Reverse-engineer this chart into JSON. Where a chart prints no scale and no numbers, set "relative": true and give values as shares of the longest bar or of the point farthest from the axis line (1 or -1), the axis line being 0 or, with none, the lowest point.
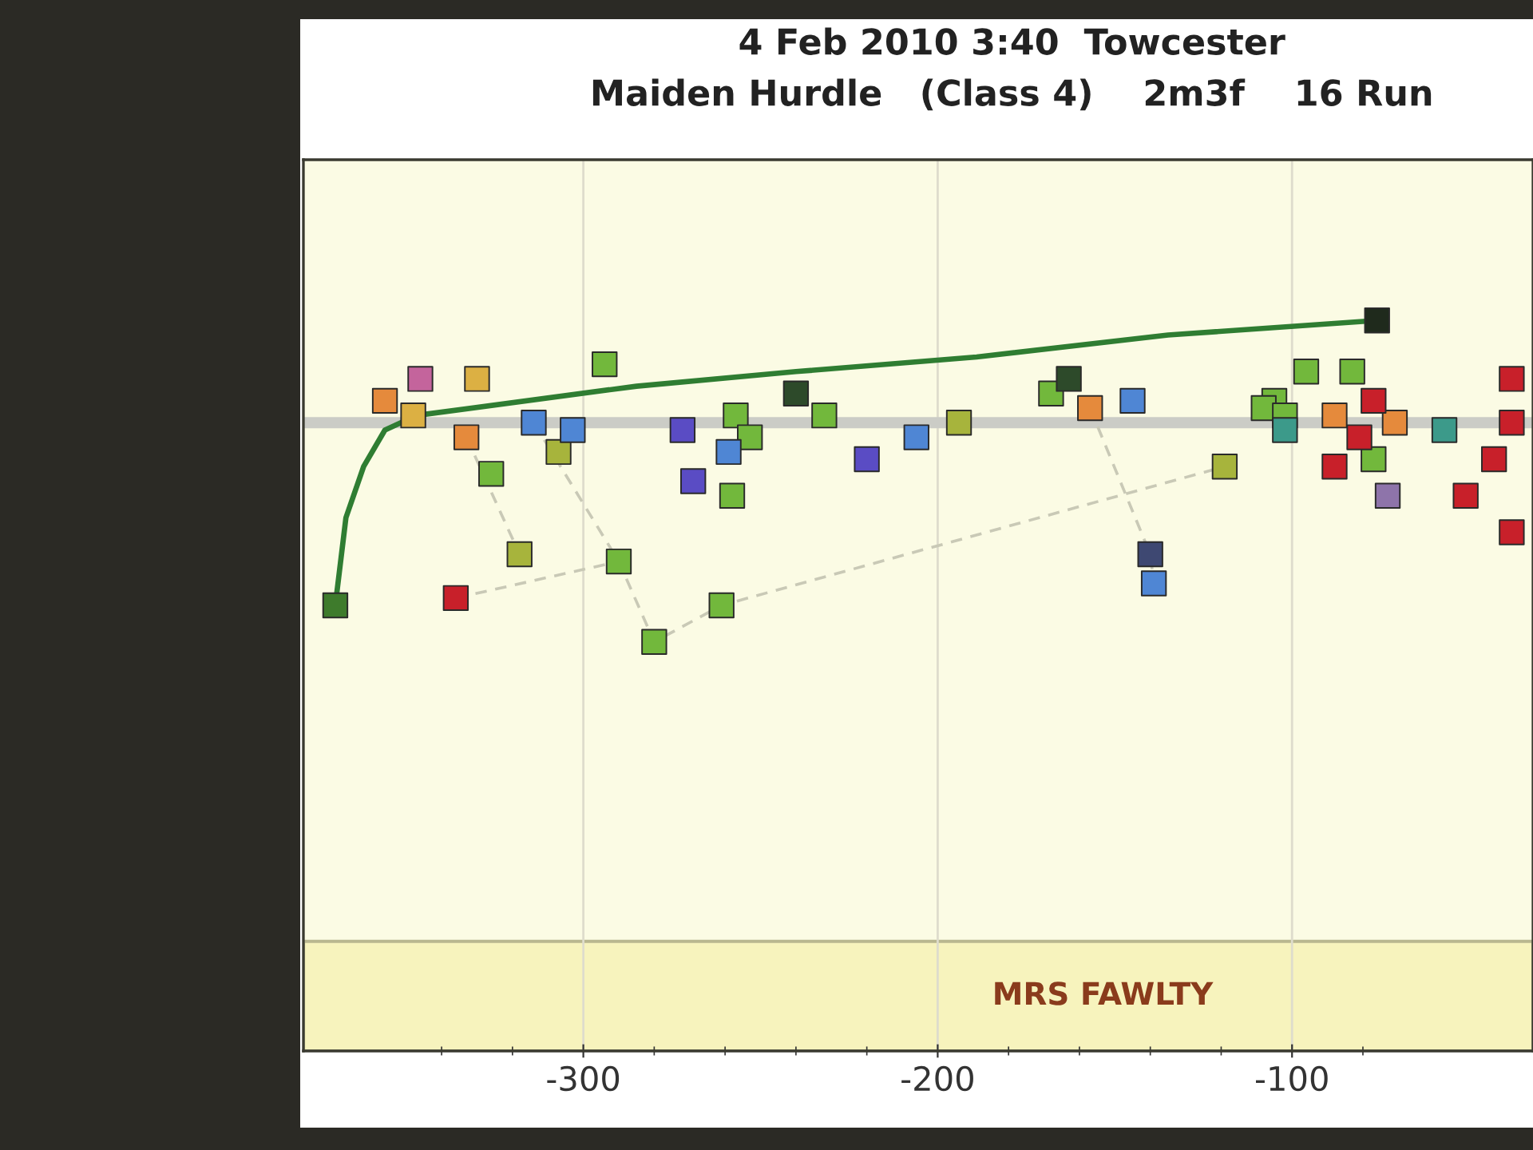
{
  "chart_data": {
    "type": "scatter",
    "title": "4 Feb 2010 3:40  Towcester",
    "subtitle": "Maiden Hurdle   (Class 4)    2m3f    16 Run",
    "relative": true,
    "grid": "x",
    "xlim": [
      -379,
      -32
    ],
    "xticks": [
      {
        "value": -340,
        "label": null
      },
      {
        "value": -320,
        "label": null
      },
      -300,
      {
        "value": -280,
        "label": null
      },
      {
        "value": -260,
        "label": null
      },
      {
        "value": -240,
        "label": null
      },
      {
        "value": -220,
        "label": null
      },
      -200,
      {
        "value": -180,
        "label": null
      },
      {
        "value": -160,
        "label": null
      },
      {
        "value": -140,
        "label": null
      },
      {
        "value": -120,
        "label": null
      },
      -100,
      {
        "value": -80,
        "label": null
      }
    ],
    "ref_lines": [
      {
        "axis": "y",
        "value": 0.86,
        "color": "#cbccc6"
      }
    ],
    "bands": [
      {
        "axis": "y",
        "from": 0,
        "to": 0.15,
        "label": "MRS FAWLTY",
        "color": "#f7f3bd"
      }
    ],
    "series": [
      {
        "type": "line",
        "color": "#c9c9b6",
        "line_style": "dashed",
        "x": [
          -336,
          -290
        ],
        "values": [
          0.62,
          0.67
        ]
      },
      {
        "type": "line",
        "color": "#c9c9b6",
        "line_style": "dashed",
        "x": [
          -333,
          -318
        ],
        "values": [
          0.84,
          0.68
        ]
      },
      {
        "type": "line",
        "color": "#c9c9b6",
        "line_style": "dashed",
        "x": [
          -314,
          -290,
          -280,
          -261,
          -119
        ],
        "values": [
          0.86,
          0.67,
          0.56,
          0.61,
          0.8
        ]
      },
      {
        "type": "line",
        "color": "#c9c9b6",
        "line_style": "dashed",
        "x": [
          -157,
          -140,
          -139
        ],
        "values": [
          0.88,
          0.68,
          0.64
        ]
      },
      {
        "type": "line",
        "color": "#2f7d32",
        "line_style": "solid",
        "x": [
          -370,
          -367,
          -362,
          -356,
          -347,
          -285,
          -240,
          -189,
          -135,
          -76
        ],
        "values": [
          0.61,
          0.73,
          0.8,
          0.85,
          0.87,
          0.91,
          0.93,
          0.95,
          0.98,
          1.0
        ]
      },
      {
        "marker": "square",
        "color": "#72b83c",
        "x": [
          -294,
          -326,
          -290,
          -280,
          -261,
          -257,
          -253,
          -258,
          -232,
          -168,
          -96,
          -83,
          -105,
          -108,
          -102,
          -77
        ],
        "values": [
          0.94,
          0.79,
          0.67,
          0.56,
          0.61,
          0.87,
          0.84,
          0.76,
          0.87,
          0.9,
          0.93,
          0.93,
          0.89,
          0.88,
          0.87,
          0.81
        ]
      },
      {
        "marker": "square",
        "color": "#a7b43c",
        "x": [
          -307,
          -318,
          -194,
          -119
        ],
        "values": [
          0.82,
          0.68,
          0.86,
          0.8
        ]
      },
      {
        "marker": "square",
        "color": "#2d4a2a",
        "x": [
          -240,
          -163
        ],
        "values": [
          0.9,
          0.92
        ]
      },
      {
        "marker": "square",
        "color": "#e58a3c",
        "x": [
          -356,
          -333,
          -157,
          -88,
          -71
        ],
        "values": [
          0.89,
          0.84,
          0.88,
          0.87,
          0.86
        ]
      },
      {
        "marker": "square",
        "color": "#dcb043",
        "x": [
          -330,
          -348
        ],
        "values": [
          0.92,
          0.87
        ]
      },
      {
        "marker": "square",
        "color": "#c4649c",
        "x": [
          -346
        ],
        "values": [
          0.92
        ]
      },
      {
        "marker": "square",
        "color": "#4f86d4",
        "x": [
          -314,
          -303,
          -259,
          -206,
          -145,
          -139
        ],
        "values": [
          0.86,
          0.85,
          0.82,
          0.84,
          0.89,
          0.64
        ]
      },
      {
        "marker": "square",
        "color": "#5a4cc4",
        "x": [
          -272,
          -269,
          -220
        ],
        "values": [
          0.85,
          0.78,
          0.81
        ]
      },
      {
        "marker": "square",
        "color": "#3e4872",
        "x": [
          -140
        ],
        "values": [
          0.68
        ]
      },
      {
        "marker": "square",
        "color": "#c8202a",
        "x": [
          -336,
          -77,
          -81,
          -88,
          -38,
          -38,
          -43,
          -51,
          -38
        ],
        "values": [
          0.62,
          0.89,
          0.84,
          0.8,
          0.92,
          0.86,
          0.81,
          0.76,
          0.71
        ]
      },
      {
        "marker": "square",
        "color": "#3c9a8a",
        "x": [
          -102,
          -57
        ],
        "values": [
          0.85,
          0.85
        ]
      },
      {
        "marker": "square",
        "color": "#8e74aa",
        "x": [
          -73
        ],
        "values": [
          0.76
        ]
      },
      {
        "marker": "square",
        "colors": [
          "#3e7b2c",
          "#1f2a1c"
        ],
        "x": [
          -370,
          -76
        ],
        "values": [
          0.61,
          1.0
        ]
      }
    ]
  }
}
